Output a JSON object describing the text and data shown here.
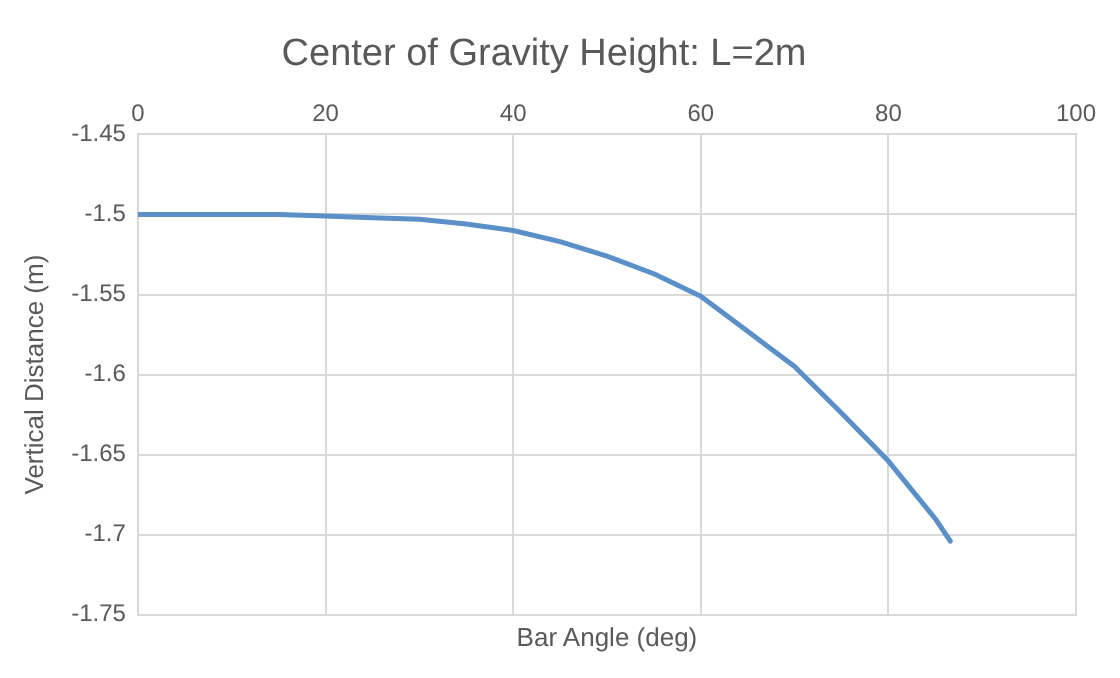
{
  "chart_data": {
    "type": "line",
    "title": "Center of Gravity Height: L=2m",
    "xlabel": "Bar Angle (deg)",
    "ylabel": "Vertical Distance (m)",
    "series": [
      {
        "color": "#5b8fc7",
        "x": [
          0,
          10,
          15,
          20,
          25,
          30,
          35,
          40,
          45,
          50,
          55,
          60,
          65,
          70,
          75,
          80,
          85,
          86.6
        ],
        "values": [
          -1.5,
          -1.5,
          -1.5,
          -1.501,
          -1.502,
          -1.503,
          -1.506,
          -1.51,
          -1.517,
          -1.526,
          -1.537,
          -1.551,
          -1.573,
          -1.595,
          -1.624,
          -1.654,
          -1.69,
          -1.704
        ]
      }
    ],
    "xlim": [
      0,
      100
    ],
    "xticks": [
      0,
      20,
      40,
      60,
      80,
      100
    ],
    "ylim": [
      -1.75,
      -1.45
    ],
    "yticks": [
      -1.75,
      -1.7,
      -1.65,
      -1.6,
      -1.55,
      -1.5,
      -1.45
    ],
    "grid": true,
    "marker": "none",
    "line_style": "solid"
  }
}
